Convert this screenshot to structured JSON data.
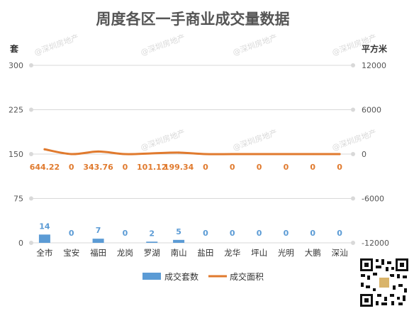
{
  "chart_data": {
    "type": "bar+line",
    "title": "周度各区一手商业成交量数据",
    "left_axis_label": "套",
    "right_axis_label": "平方米",
    "left_ticks": [
      "300",
      "225",
      "150",
      "75",
      "0"
    ],
    "right_ticks": [
      "12000",
      "6000",
      "0",
      "-6000",
      "-12000"
    ],
    "left_ylim": [
      0,
      300
    ],
    "right_ylim": [
      -12000,
      12000
    ],
    "categories": [
      "全市",
      "宝安",
      "福田",
      "龙岗",
      "罗湖",
      "南山",
      "盐田",
      "龙华",
      "坪山",
      "光明",
      "大鹏",
      "深汕"
    ],
    "series": [
      {
        "name": "成交套数",
        "type": "bar",
        "axis": "left",
        "color": "#5b9bd5",
        "values": [
          14,
          0,
          7,
          0,
          2,
          5,
          0,
          0,
          0,
          0,
          0,
          0
        ],
        "labels": [
          "14",
          "0",
          "7",
          "0",
          "2",
          "5",
          "0",
          "0",
          "0",
          "0",
          "0",
          "0"
        ]
      },
      {
        "name": "成交面积",
        "type": "line",
        "axis": "right",
        "color": "#e07a2e",
        "values": [
          644.22,
          0,
          343.76,
          0,
          101.12,
          199.34,
          0,
          0,
          0,
          0,
          0,
          0
        ],
        "labels": [
          "644.22",
          "0",
          "343.76",
          "0",
          "101.12",
          "199.34",
          "0",
          "0",
          "0",
          "0",
          "0",
          "0"
        ]
      }
    ],
    "grid": true,
    "legend_position": "bottom",
    "watermark": "@深圳房地产"
  }
}
